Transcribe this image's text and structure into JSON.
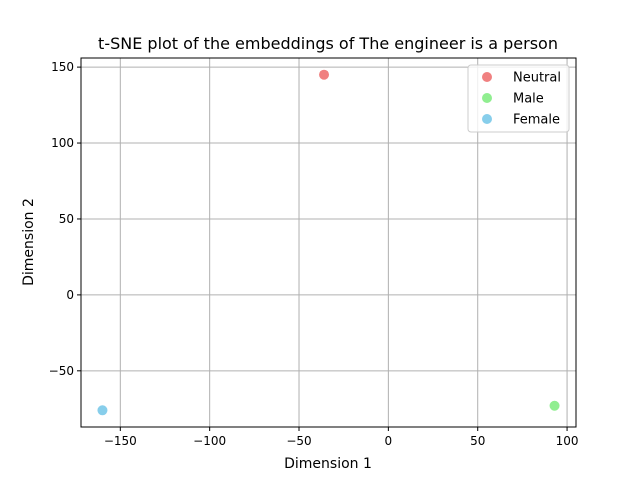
{
  "chart_data": {
    "type": "scatter",
    "title": "t-SNE plot of the embeddings of The engineer is a person",
    "xlabel": "Dimension 1",
    "ylabel": "Dimension 2",
    "xlim": [
      -172,
      105
    ],
    "ylim": [
      -87,
      156
    ],
    "xticks": [
      -150,
      -100,
      -50,
      0,
      50,
      100
    ],
    "yticks": [
      -50,
      0,
      50,
      100,
      150
    ],
    "xtick_labels": [
      "−150",
      "−100",
      "−50",
      "0",
      "50",
      "100"
    ],
    "ytick_labels": [
      "−50",
      "0",
      "50",
      "100",
      "150"
    ],
    "grid": true,
    "legend_position": "top-right",
    "series": [
      {
        "name": "Neutral",
        "color": "#f08080",
        "points": [
          {
            "x": -36,
            "y": 145
          }
        ]
      },
      {
        "name": "Male",
        "color": "#90ee90",
        "points": [
          {
            "x": 93,
            "y": -73
          }
        ]
      },
      {
        "name": "Female",
        "color": "#87ceeb",
        "points": [
          {
            "x": -160,
            "y": -76
          }
        ]
      }
    ]
  }
}
